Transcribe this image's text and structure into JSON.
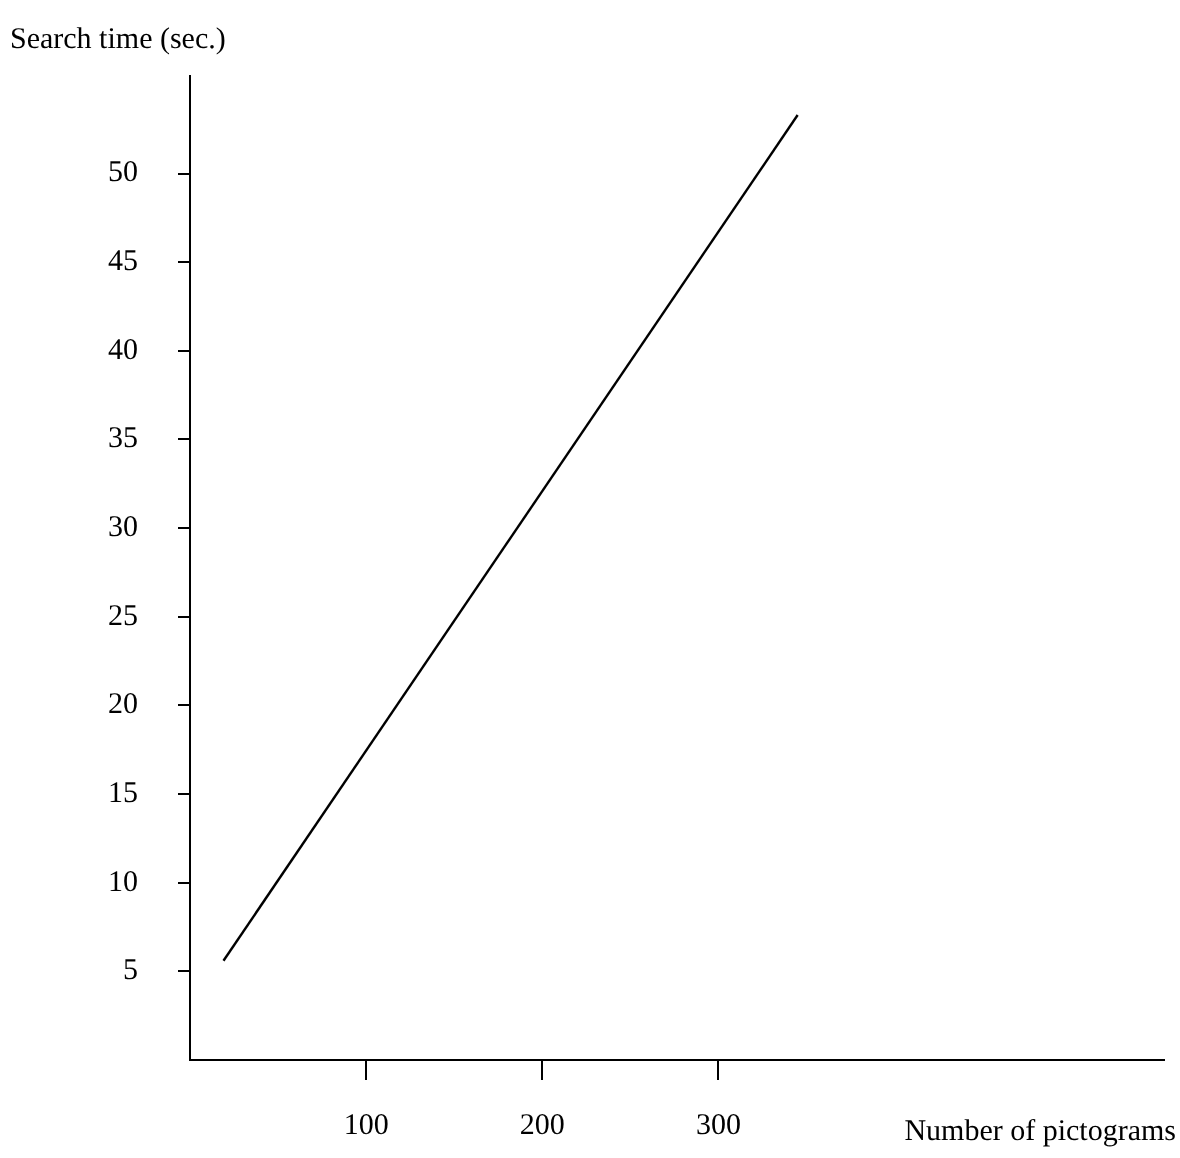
{
  "chart_data": {
    "type": "line",
    "xlabel": "Number of pictograms",
    "ylabel": "Search time (sec.)",
    "x": [
      19,
      345
    ],
    "series": [
      {
        "color": "#000000",
        "values": [
          5.6,
          53.3
        ]
      }
    ],
    "xlim": [
      0,
      553
    ],
    "ylim": [
      0,
      55.5
    ],
    "xticks": [
      100,
      200,
      300
    ],
    "yticks": [
      5,
      10,
      15,
      20,
      25,
      30,
      35,
      40,
      45,
      50
    ],
    "grid": false,
    "legend": false,
    "marker": "none",
    "line_style": "solid"
  }
}
